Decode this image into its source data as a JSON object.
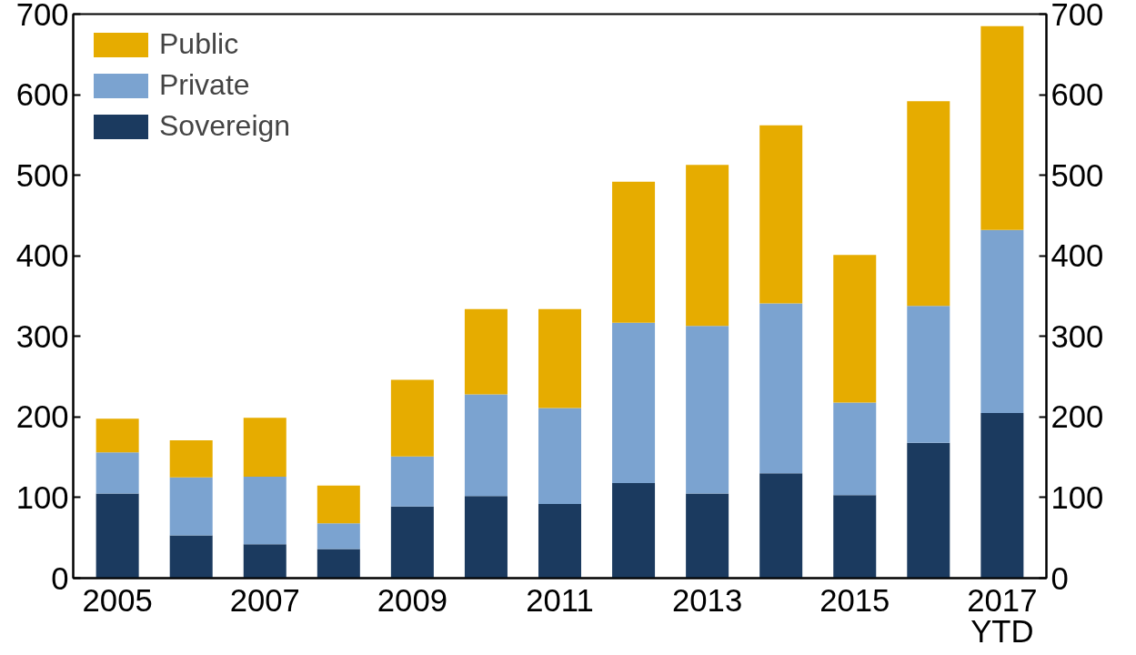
{
  "chart_data": {
    "type": "bar",
    "stacked": true,
    "categories": [
      "2005",
      null,
      "2007",
      null,
      "2009",
      null,
      "2011",
      null,
      "2013",
      null,
      "2015",
      null,
      "2017\nYTD"
    ],
    "series": [
      {
        "name": "Sovereign",
        "color": "#1b3a5f",
        "values": [
          105,
          53,
          42,
          36,
          89,
          102,
          92,
          118,
          105,
          130,
          103,
          168,
          205
        ]
      },
      {
        "name": "Private",
        "color": "#7ba3d0",
        "values": [
          51,
          72,
          84,
          32,
          62,
          126,
          119,
          199,
          208,
          211,
          115,
          170,
          227
        ]
      },
      {
        "name": "Public",
        "color": "#e6ac00",
        "values": [
          42,
          46,
          73,
          47,
          95,
          106,
          123,
          175,
          200,
          221,
          183,
          254,
          253
        ]
      }
    ],
    "ylim": [
      0,
      700
    ],
    "yticks": [
      0,
      100,
      200,
      300,
      400,
      500,
      600,
      700
    ],
    "y2lim": [
      0,
      700
    ],
    "y2ticks": [
      0,
      100,
      200,
      300,
      400,
      500,
      600,
      700
    ],
    "grid": false,
    "legend": "top left"
  }
}
